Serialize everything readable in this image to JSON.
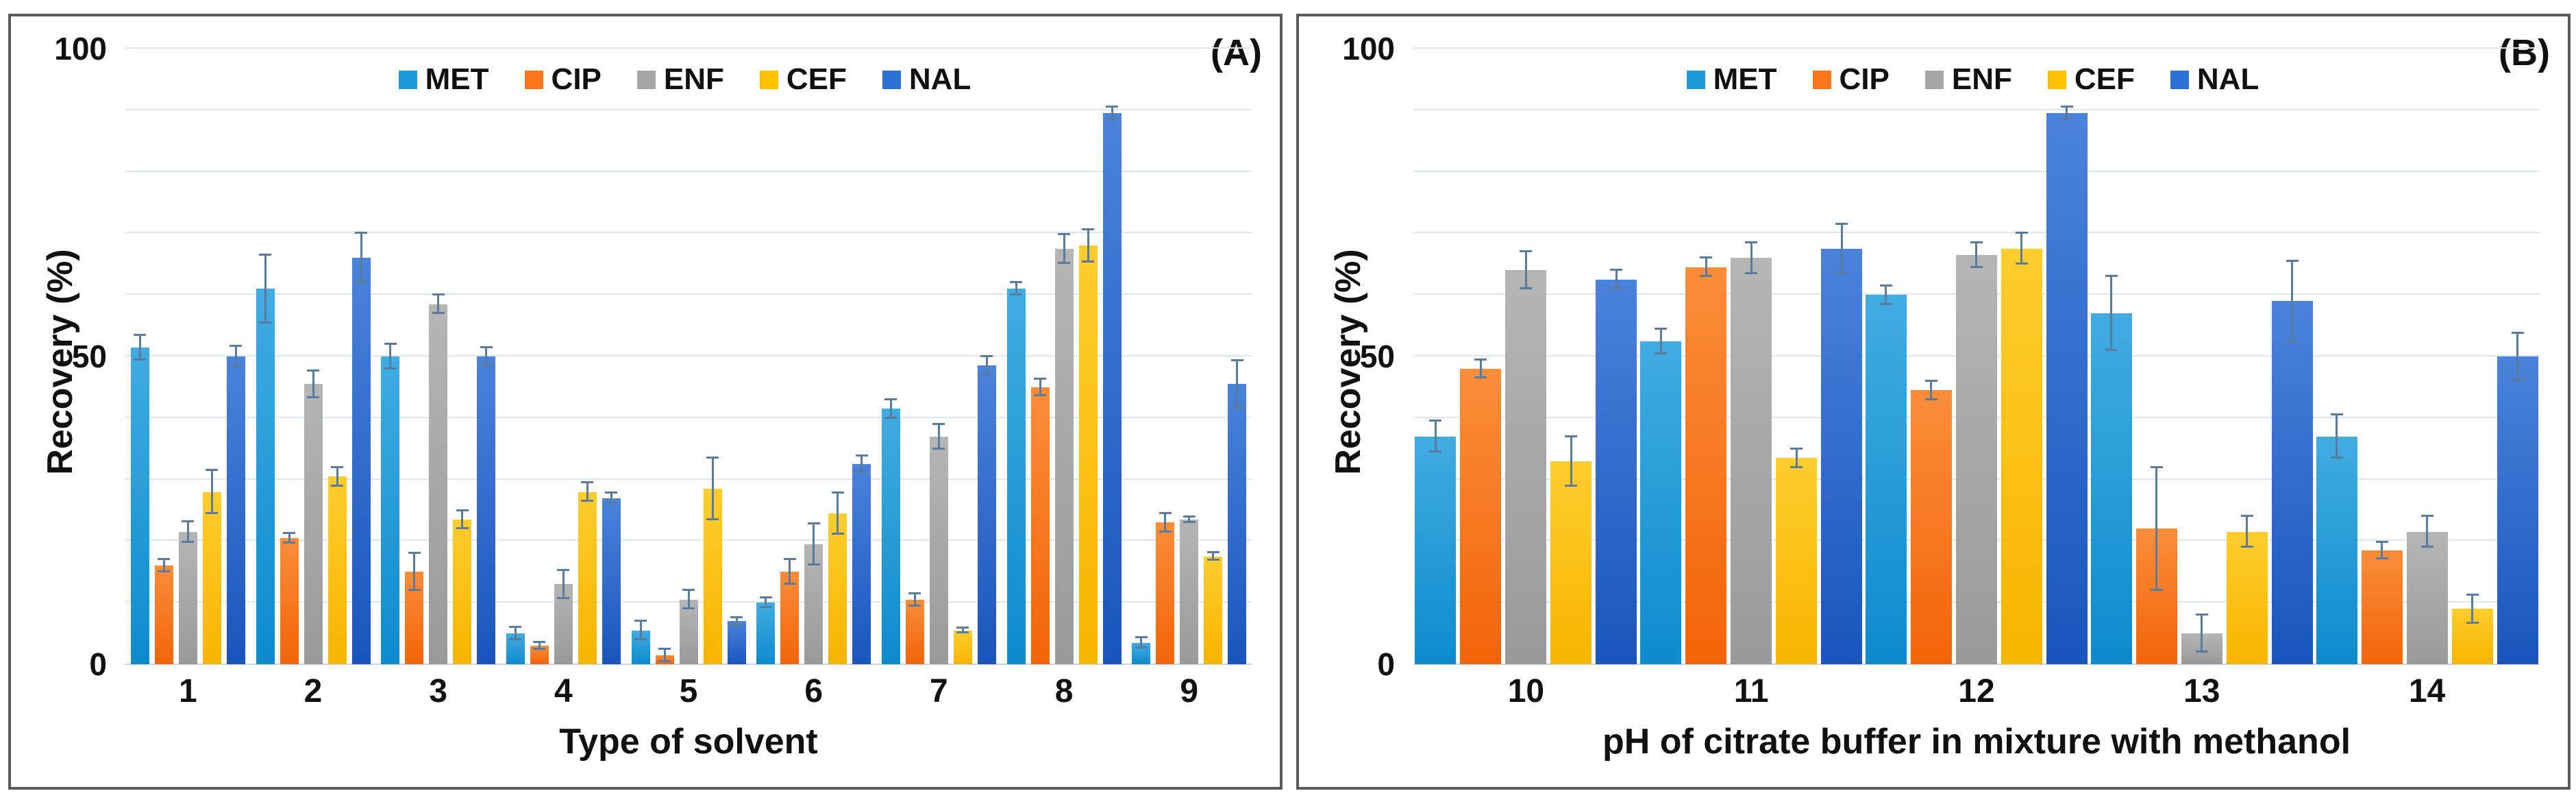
{
  "figure": {
    "panels": [
      {
        "corner_label": "(A)"
      },
      {
        "corner_label": "(B)"
      }
    ]
  },
  "colors": {
    "gridline": "#dde7f2",
    "axis_line": "#c6d4e2",
    "error_bar": "#5b7b9d",
    "panel_border": "#5a5a5a",
    "text": "#111111"
  },
  "chart_data": [
    {
      "type": "bar",
      "panel_label": "(A)",
      "title": "",
      "xlabel": "Type of solvent",
      "ylabel": "Recovery (%)",
      "ylim": [
        0,
        100
      ],
      "y_ticks": [
        0,
        50,
        100
      ],
      "gridline_step": 10,
      "grid": true,
      "legend_position": "top-center",
      "categories": [
        "1",
        "2",
        "3",
        "4",
        "5",
        "6",
        "7",
        "8",
        "9"
      ],
      "series": [
        {
          "name": "MET",
          "color": "#1f9bd7",
          "color_top": "#41ace1",
          "color_bottom": "#0e8bcd",
          "values": [
            51.5,
            61,
            50,
            5,
            5.5,
            10,
            41.5,
            61,
            3.5
          ],
          "errors": [
            2,
            5.5,
            2,
            1,
            1.5,
            0.8,
            1.5,
            1,
            0.8
          ]
        },
        {
          "name": "CIP",
          "color": "#f87619",
          "color_top": "#fb8d3b",
          "color_bottom": "#f26409",
          "values": [
            16,
            20.5,
            15,
            3,
            1.5,
            15,
            10.5,
            45,
            23
          ],
          "errors": [
            1,
            0.8,
            3,
            0.6,
            1,
            2,
            1,
            1.3,
            1.5
          ]
        },
        {
          "name": "ENF",
          "color": "#a6a6a6",
          "color_top": "#b5b5b5",
          "color_bottom": "#9a9a9a",
          "values": [
            21.5,
            45.5,
            58.5,
            13,
            10.5,
            19.5,
            37,
            67.5,
            23.5
          ],
          "errors": [
            1.7,
            2.2,
            1.5,
            2.3,
            1.5,
            3.3,
            2,
            2.3,
            0.4
          ]
        },
        {
          "name": "CEF",
          "color": "#ffc000",
          "color_top": "#ffcd2e",
          "color_bottom": "#f7b500",
          "values": [
            28,
            30.5,
            23.5,
            28,
            28.5,
            24.5,
            5.5,
            68,
            17.5
          ],
          "errors": [
            3.5,
            1.5,
            1.5,
            1.5,
            5,
            3.3,
            0.4,
            2.6,
            0.6
          ]
        },
        {
          "name": "NAL",
          "color": "#2d6fd2",
          "color_top": "#4b82dc",
          "color_bottom": "#1a55bc",
          "values": [
            50,
            66,
            50,
            27,
            7,
            32.5,
            48.5,
            89.5,
            45.5
          ],
          "errors": [
            1.7,
            4,
            1.5,
            0.8,
            0.6,
            1.3,
            1.5,
            1,
            3.8
          ]
        }
      ]
    },
    {
      "type": "bar",
      "panel_label": "(B)",
      "title": "",
      "xlabel": "pH of citrate buffer in mixture with methanol",
      "ylabel": "Recovery (%)",
      "ylim": [
        0,
        100
      ],
      "y_ticks": [
        0,
        50,
        100
      ],
      "gridline_step": 10,
      "grid": true,
      "legend_position": "top-center",
      "categories": [
        "10",
        "11",
        "12",
        "13",
        "14"
      ],
      "series": [
        {
          "name": "MET",
          "color": "#1f9bd7",
          "color_top": "#41ace1",
          "color_bottom": "#0e8bcd",
          "values": [
            37,
            52.5,
            60,
            57,
            37
          ],
          "errors": [
            2.5,
            2,
            1.5,
            6,
            3.5
          ]
        },
        {
          "name": "CIP",
          "color": "#f87619",
          "color_top": "#fb8d3b",
          "color_bottom": "#f26409",
          "values": [
            48,
            64.5,
            44.5,
            22,
            18.5
          ],
          "errors": [
            1.5,
            1.5,
            1.5,
            10,
            1.3
          ]
        },
        {
          "name": "ENF",
          "color": "#a6a6a6",
          "color_top": "#b5b5b5",
          "color_bottom": "#9a9a9a",
          "values": [
            64,
            66,
            66.5,
            5,
            21.5
          ],
          "errors": [
            3,
            2.5,
            2,
            3,
            2.5
          ]
        },
        {
          "name": "CEF",
          "color": "#ffc000",
          "color_top": "#ffcd2e",
          "color_bottom": "#f7b500",
          "values": [
            33,
            33.5,
            67.5,
            21.5,
            9
          ],
          "errors": [
            4,
            1.5,
            2.5,
            2.5,
            2.3
          ]
        },
        {
          "name": "NAL",
          "color": "#2d6fd2",
          "color_top": "#4b82dc",
          "color_bottom": "#1a55bc",
          "values": [
            62.5,
            67.5,
            89.5,
            59,
            50
          ],
          "errors": [
            1.5,
            4,
            1,
            6.5,
            3.8
          ]
        }
      ]
    }
  ]
}
